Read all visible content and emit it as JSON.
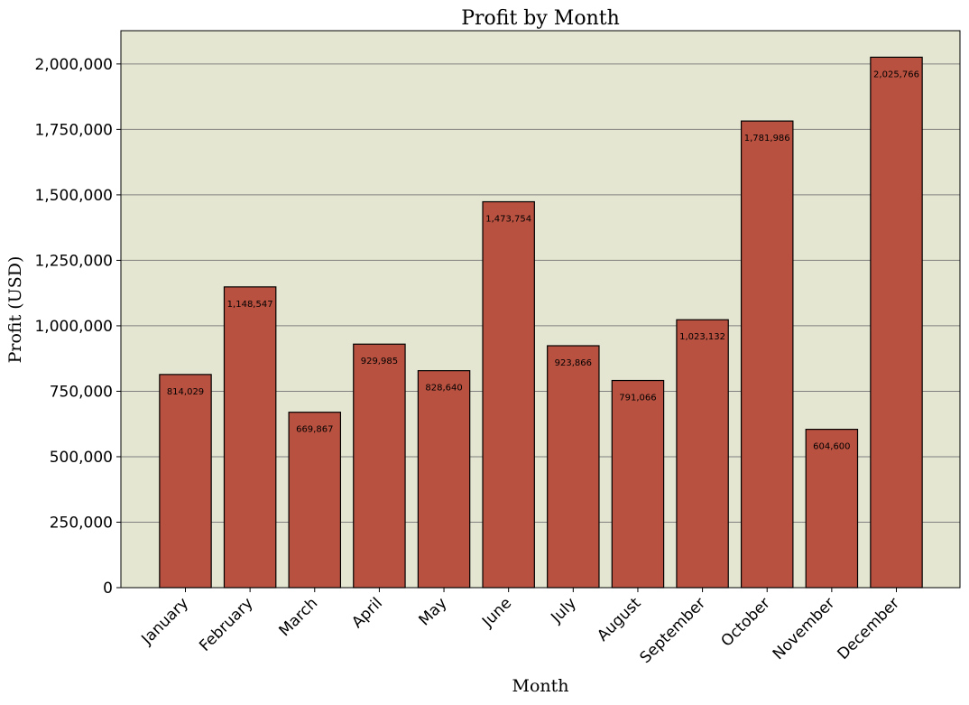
{
  "chart_data": {
    "type": "bar",
    "title": "Profit by Month",
    "xlabel": "Month",
    "ylabel": "Profit (USD)",
    "categories": [
      "January",
      "February",
      "March",
      "April",
      "May",
      "June",
      "July",
      "August",
      "September",
      "October",
      "November",
      "December"
    ],
    "values": [
      814029,
      1148547,
      669867,
      929985,
      828640,
      1473754,
      923866,
      791066,
      1023132,
      1781986,
      604600,
      2025766
    ],
    "value_labels": [
      "814,029",
      "1,148,547",
      "669,867",
      "929,985",
      "828,640",
      "1,473,754",
      "923,866",
      "791,066",
      "1,023,132",
      "1,781,986",
      "604,600",
      "2,025,766"
    ],
    "ylim": [
      0,
      2127054
    ],
    "yticks": [
      0,
      250000,
      500000,
      750000,
      1000000,
      1250000,
      1500000,
      1750000,
      2000000
    ],
    "ytick_labels": [
      "0",
      "250,000",
      "500,000",
      "750,000",
      "1,000,000",
      "1,250,000",
      "1,500,000",
      "1,750,000",
      "2,000,000"
    ],
    "grid": "y",
    "colors": {
      "plot_background": "#e5e6d1",
      "bar_fill": "#b95140",
      "bar_edge": "#000000",
      "grid": "#808080"
    }
  }
}
